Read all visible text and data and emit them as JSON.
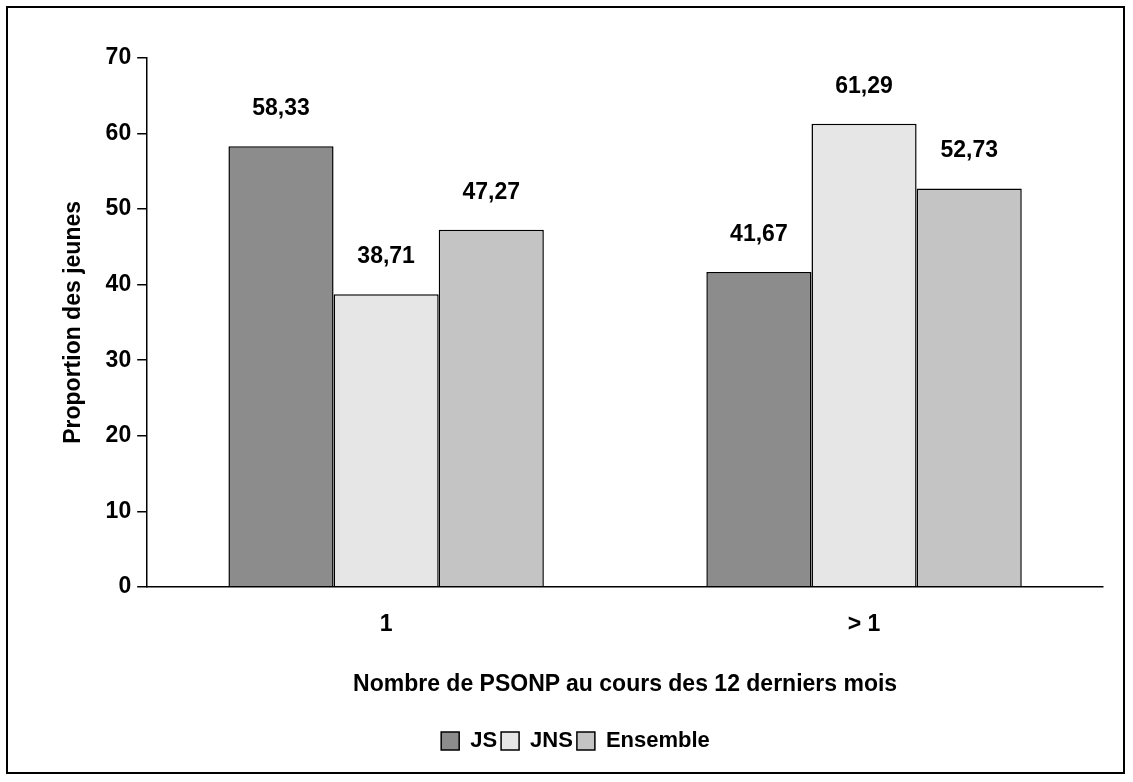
{
  "chart_data": {
    "type": "bar",
    "xlabel": "Nombre de PSONP au cours des 12 derniers mois",
    "ylabel": "Proportion des jeunes",
    "categories": [
      "1",
      "> 1"
    ],
    "series": [
      {
        "name": "JS",
        "color": "#8c8c8c",
        "values": [
          58.33,
          41.67
        ],
        "value_labels": [
          "58,33",
          "41,67"
        ]
      },
      {
        "name": "JNS",
        "color": "#e6e6e6",
        "values": [
          38.71,
          61.29
        ],
        "value_labels": [
          "38,71",
          "61,29"
        ]
      },
      {
        "name": "Ensemble",
        "color": "#c4c4c4",
        "values": [
          47.27,
          52.73
        ],
        "value_labels": [
          "47,27",
          "52,73"
        ]
      }
    ],
    "ylim": [
      0,
      70
    ],
    "yticks": [
      0,
      10,
      20,
      30,
      40,
      50,
      60,
      70
    ],
    "grid": false,
    "legend": "bottom"
  }
}
